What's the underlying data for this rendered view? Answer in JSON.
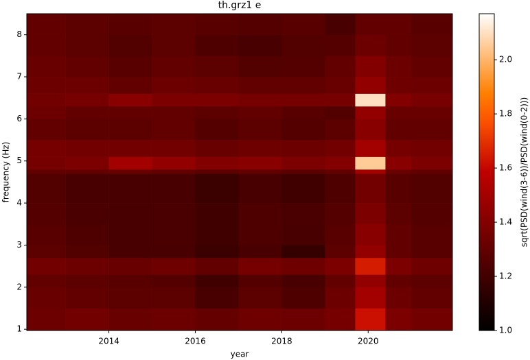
{
  "chart_data": {
    "type": "heatmap",
    "title": "th.grz1 e",
    "x_label": "year",
    "y_label": "frequency (Hz)",
    "colorbar_label": "sqrt(PSD(wind(3-6))/PSD(wind(0-2)))",
    "colormap": "gist_heat",
    "xlim": [
      2012.1,
      2021.95
    ],
    "xticks": [
      2014,
      2016,
      2018,
      2020
    ],
    "ylim": [
      0.97,
      8.5
    ],
    "yticks": [
      1,
      2,
      3,
      4,
      5,
      6,
      7,
      8
    ],
    "zlim": [
      1.0,
      2.17
    ],
    "zticks": [
      {
        "value": 1,
        "label": "1.0"
      },
      1.2,
      1.4,
      1.6,
      1.8,
      {
        "value": 2,
        "label": "2.0"
      }
    ],
    "x_edges": [
      2012.1,
      2013,
      2014,
      2015,
      2016,
      2017,
      2018,
      2019,
      2019.7,
      2020.4,
      2021,
      2021.95
    ],
    "y_edges": [
      0.97,
      1.5,
      2,
      2.3,
      2.7,
      3,
      3.5,
      4,
      4.7,
      4.8,
      5.1,
      5.5,
      6,
      6.3,
      6.6,
      7,
      7.5,
      8,
      8.5
    ],
    "z": [
      [
        1.33,
        1.35,
        1.32,
        1.33,
        1.31,
        1.34,
        1.33,
        1.36,
        1.62,
        1.38,
        1.35
      ],
      [
        1.32,
        1.3,
        1.28,
        1.28,
        1.22,
        1.28,
        1.24,
        1.33,
        1.5,
        1.33,
        1.3
      ],
      [
        1.3,
        1.28,
        1.27,
        1.26,
        1.2,
        1.26,
        1.22,
        1.3,
        1.45,
        1.3,
        1.28
      ],
      [
        1.35,
        1.33,
        1.32,
        1.34,
        1.3,
        1.36,
        1.34,
        1.38,
        1.65,
        1.38,
        1.34
      ],
      [
        1.28,
        1.25,
        1.22,
        1.22,
        1.18,
        1.22,
        1.16,
        1.28,
        1.45,
        1.3,
        1.27
      ],
      [
        1.27,
        1.24,
        1.22,
        1.23,
        1.2,
        1.24,
        1.22,
        1.27,
        1.42,
        1.3,
        1.27
      ],
      [
        1.26,
        1.23,
        1.22,
        1.23,
        1.2,
        1.24,
        1.23,
        1.26,
        1.38,
        1.28,
        1.26
      ],
      [
        1.25,
        1.22,
        1.22,
        1.22,
        1.18,
        1.22,
        1.2,
        1.24,
        1.35,
        1.27,
        1.25
      ],
      [
        1.3,
        1.3,
        1.32,
        1.3,
        1.28,
        1.3,
        1.28,
        1.3,
        1.5,
        1.32,
        1.3
      ],
      [
        1.36,
        1.38,
        1.5,
        1.45,
        1.4,
        1.42,
        1.38,
        1.4,
        2.05,
        1.42,
        1.38
      ],
      [
        1.36,
        1.35,
        1.35,
        1.35,
        1.32,
        1.34,
        1.33,
        1.35,
        1.5,
        1.36,
        1.35
      ],
      [
        1.3,
        1.28,
        1.28,
        1.3,
        1.26,
        1.28,
        1.26,
        1.28,
        1.42,
        1.3,
        1.3
      ],
      [
        1.33,
        1.3,
        1.3,
        1.3,
        1.28,
        1.3,
        1.27,
        1.25,
        1.45,
        1.32,
        1.32
      ],
      [
        1.35,
        1.36,
        1.42,
        1.38,
        1.38,
        1.36,
        1.36,
        1.36,
        2.1,
        1.4,
        1.37
      ],
      [
        1.33,
        1.33,
        1.3,
        1.33,
        1.32,
        1.3,
        1.3,
        1.32,
        1.45,
        1.34,
        1.33
      ],
      [
        1.32,
        1.3,
        1.27,
        1.3,
        1.28,
        1.25,
        1.26,
        1.3,
        1.4,
        1.33,
        1.3
      ],
      [
        1.3,
        1.28,
        1.25,
        1.28,
        1.24,
        1.22,
        1.25,
        1.26,
        1.33,
        1.3,
        1.28
      ],
      [
        1.3,
        1.28,
        1.27,
        1.28,
        1.27,
        1.26,
        1.27,
        1.22,
        1.3,
        1.3,
        1.27
      ]
    ]
  }
}
